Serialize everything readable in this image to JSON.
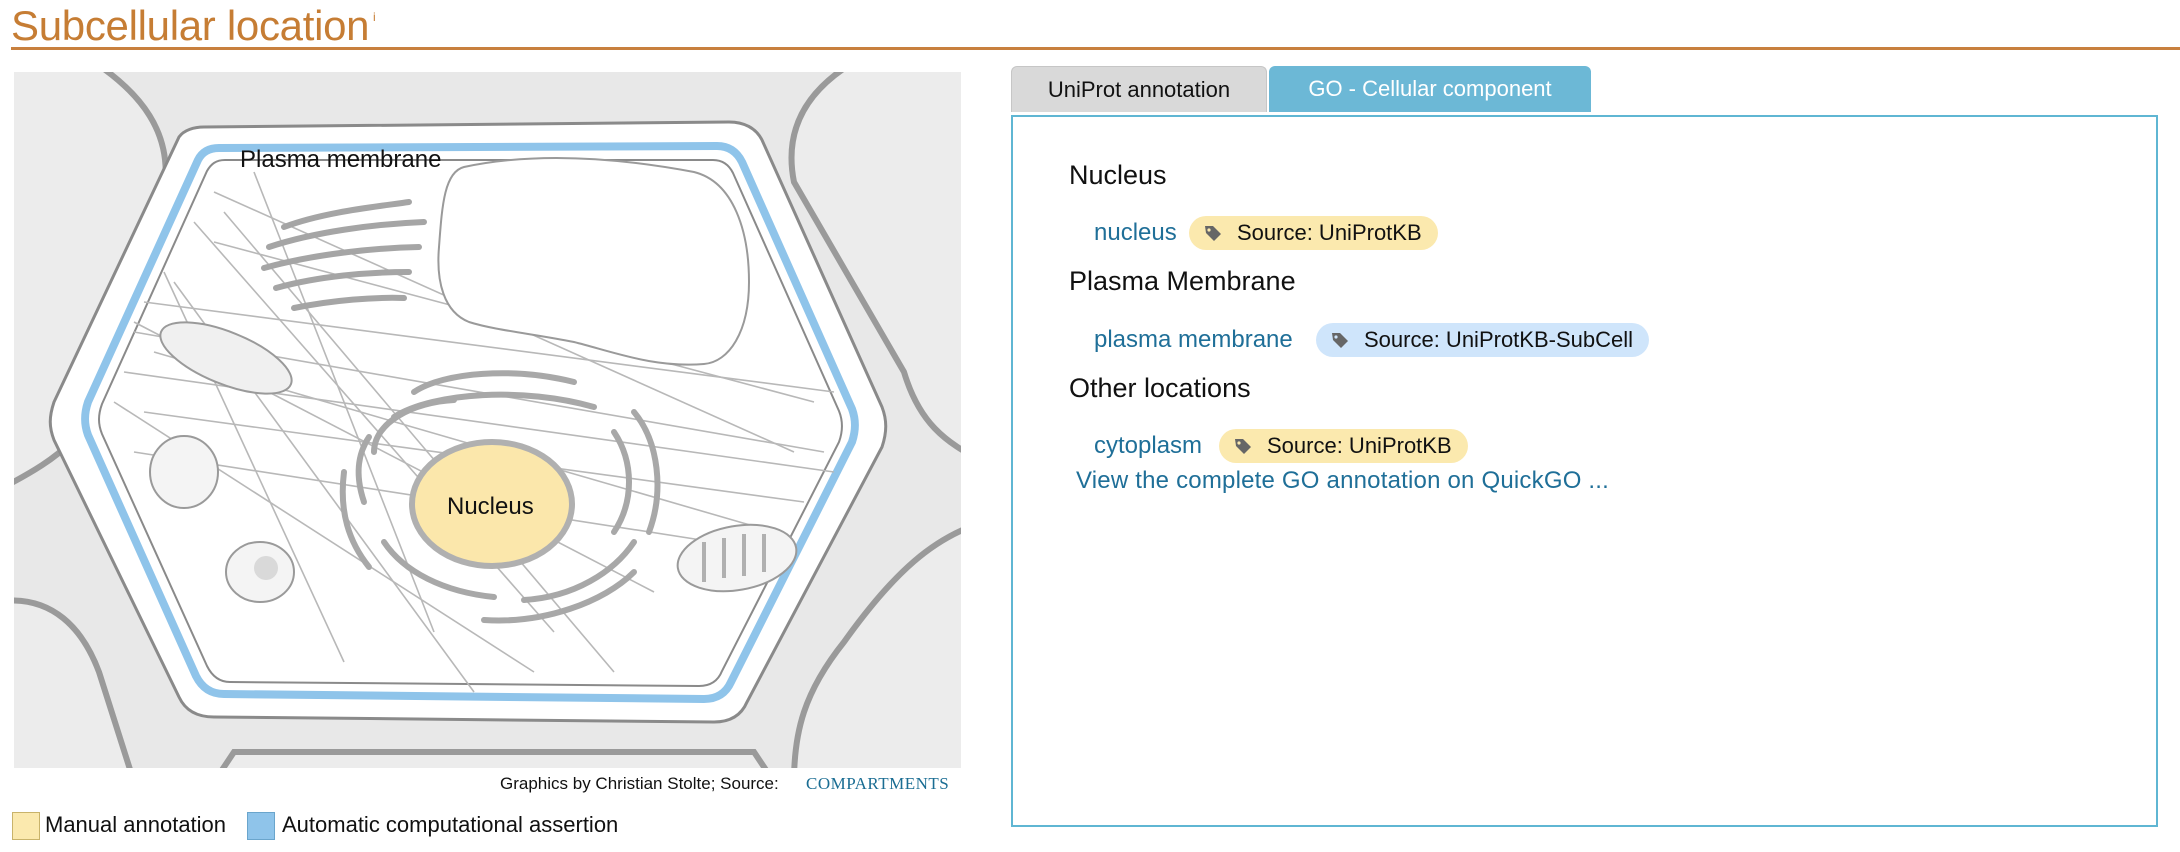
{
  "header": {
    "title": "Subcellular location",
    "info_marker": "i"
  },
  "illustration": {
    "labels": {
      "plasma_membrane": "Plasma membrane",
      "nucleus": "Nucleus"
    },
    "credit": "Graphics by Christian Stolte; Source:",
    "credit_link": "COMPARTMENTS"
  },
  "legend": {
    "manual": "Manual annotation",
    "automatic": "Automatic computational assertion"
  },
  "tabs": [
    {
      "label": "UniProt annotation",
      "active": false
    },
    {
      "label": "GO - Cellular component",
      "active": true
    }
  ],
  "panel": {
    "sections": [
      {
        "heading": "Nucleus",
        "term": "nucleus",
        "source": "Source: UniProtKB",
        "source_type": "manual"
      },
      {
        "heading": "Plasma Membrane",
        "term": "plasma membrane",
        "source": "Source: UniProtKB-SubCell",
        "source_type": "automatic"
      },
      {
        "heading": "Other locations",
        "term": "cytoplasm",
        "source": "Source: UniProtKB",
        "source_type": "manual"
      }
    ],
    "quickgo_link": "View the complete GO annotation on QuickGO ..."
  },
  "colors": {
    "title": "#c67d34",
    "manual": "#fbe9ae",
    "automatic": "#cfe5fb",
    "tab_active": "#6cb8d6",
    "link": "#1f6f98",
    "membrane": "#8fc4ea",
    "nucleus_fill": "#fbe7ab"
  },
  "icons": [
    "info-icon",
    "tag-icon"
  ]
}
